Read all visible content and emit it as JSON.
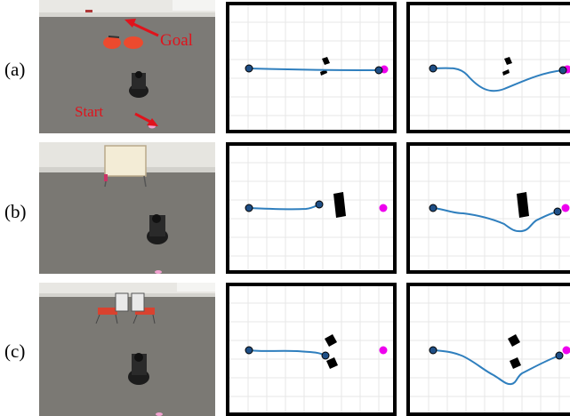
{
  "rows": [
    {
      "label": "(a)",
      "photo": {
        "goal_label": "Goal",
        "start_label": "Start"
      }
    },
    {
      "label": "(b)"
    },
    {
      "label": "(c)"
    }
  ],
  "colors": {
    "trajectory": "#2f7fbe",
    "start_marker": "#1f4f86",
    "goal_marker": "#ee00ee",
    "obstacle": "#000000",
    "annotation": "#e0131c",
    "grid": "#e7e7e7",
    "frame": "#000000"
  }
}
